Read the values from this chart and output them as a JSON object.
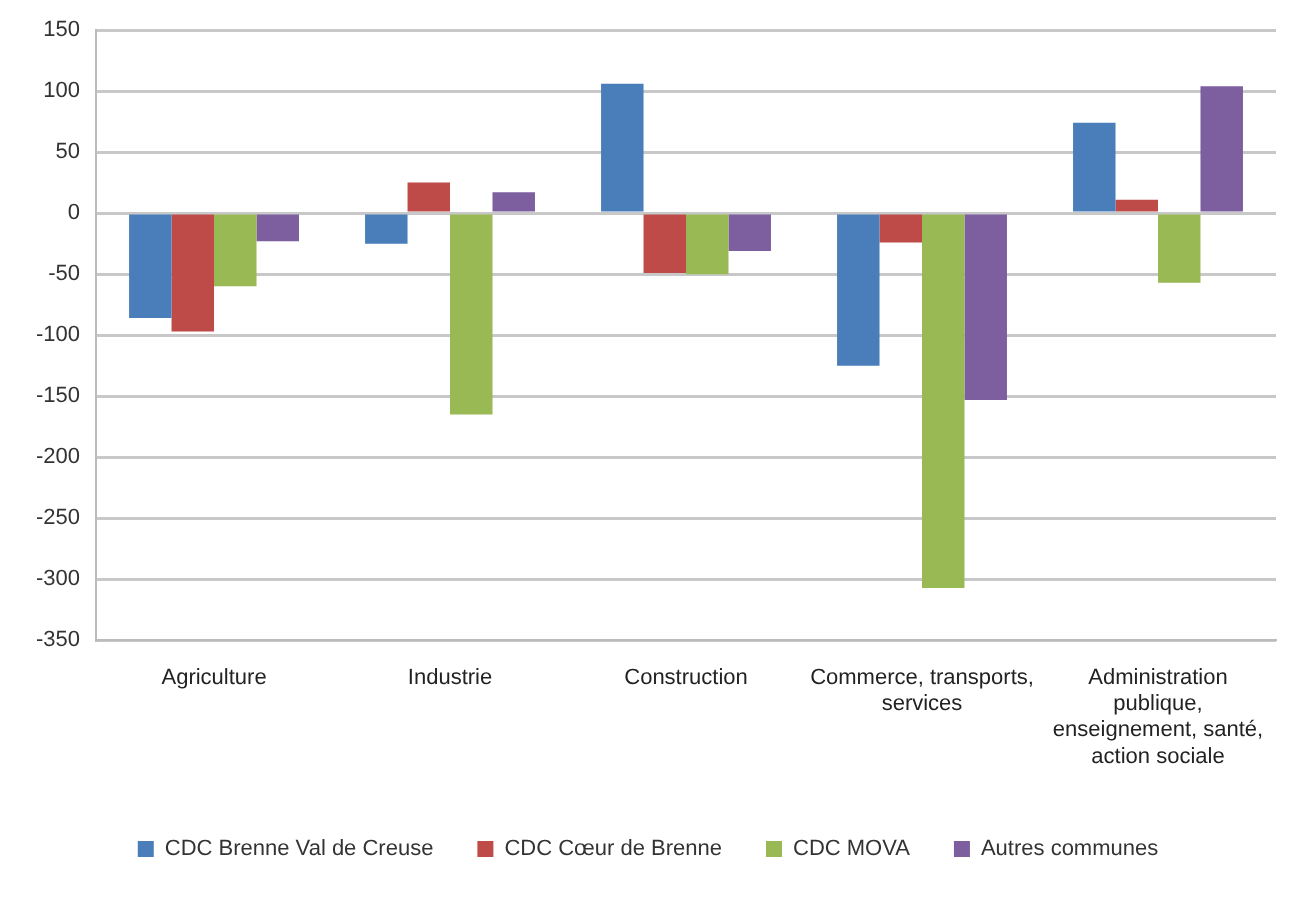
{
  "chart_data": {
    "type": "bar",
    "categories": [
      "Agriculture",
      "Industrie",
      "Construction",
      "Commerce, transports, services",
      "Administration publique, enseignement, santé, action sociale"
    ],
    "series": [
      {
        "name": "CDC Brenne Val de Creuse",
        "color": "#4a7ebb",
        "values": [
          -86,
          -25,
          106,
          -125,
          74
        ]
      },
      {
        "name": "CDC Cœur de Brenne",
        "color": "#be4b48",
        "values": [
          -97,
          25,
          -49,
          -24,
          11
        ]
      },
      {
        "name": "CDC MOVA",
        "color": "#98b954",
        "values": [
          -60,
          -165,
          -50,
          -307,
          -57
        ]
      },
      {
        "name": "Autres communes",
        "color": "#7d5fa0",
        "values": [
          -23,
          17,
          -31,
          -153,
          104
        ]
      }
    ],
    "ylim": [
      -350,
      150
    ],
    "yticks": [
      -350,
      -300,
      -250,
      -200,
      -150,
      -100,
      -50,
      0,
      50,
      100,
      150
    ],
    "grid": "y",
    "legend": "bottom"
  }
}
